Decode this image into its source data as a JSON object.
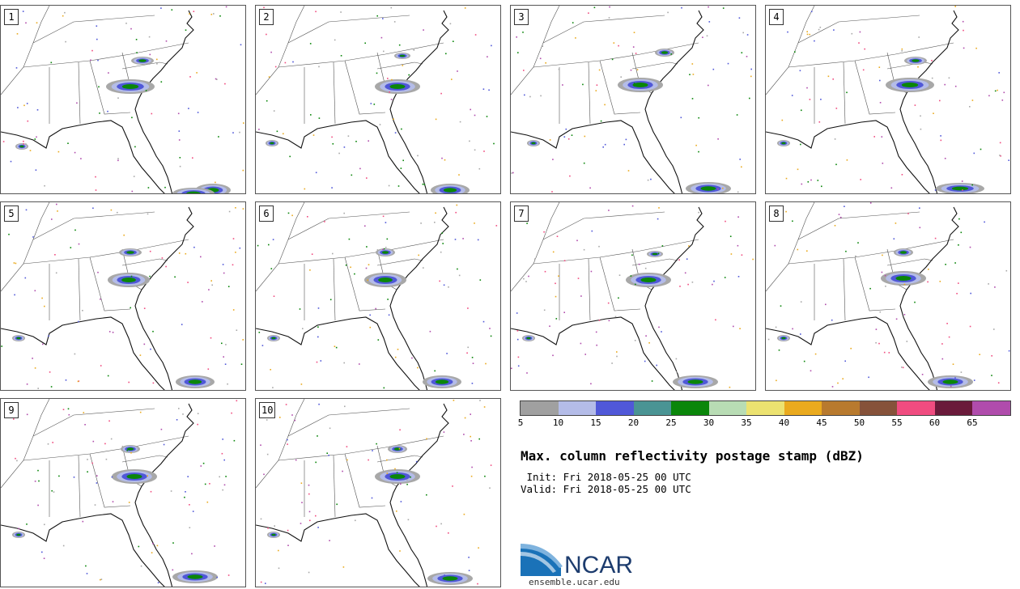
{
  "panels": [
    {
      "label": "1"
    },
    {
      "label": "2"
    },
    {
      "label": "3"
    },
    {
      "label": "4"
    },
    {
      "label": "5"
    },
    {
      "label": "6"
    },
    {
      "label": "7"
    },
    {
      "label": "8"
    },
    {
      "label": "9"
    },
    {
      "label": "10"
    }
  ],
  "colorbar": {
    "colors": [
      "#a0a0a0",
      "#b4bce8",
      "#5058d8",
      "#4a9494",
      "#0a860a",
      "#b8dcb4",
      "#ece270",
      "#eaaa1e",
      "#b87a2e",
      "#86523a",
      "#f04c80",
      "#6a1a3a",
      "#b04cac"
    ],
    "ticks": [
      "5",
      "10",
      "15",
      "20",
      "25",
      "30",
      "35",
      "40",
      "45",
      "50",
      "55",
      "60",
      "65"
    ]
  },
  "title": "Max. column reflectivity postage stamp (dBZ)",
  "init": " Init: Fri 2018-05-25 00 UTC",
  "valid": "Valid: Fri 2018-05-25 00 UTC",
  "logo": {
    "text": "NCAR",
    "url": "ensemble.ucar.edu"
  }
}
